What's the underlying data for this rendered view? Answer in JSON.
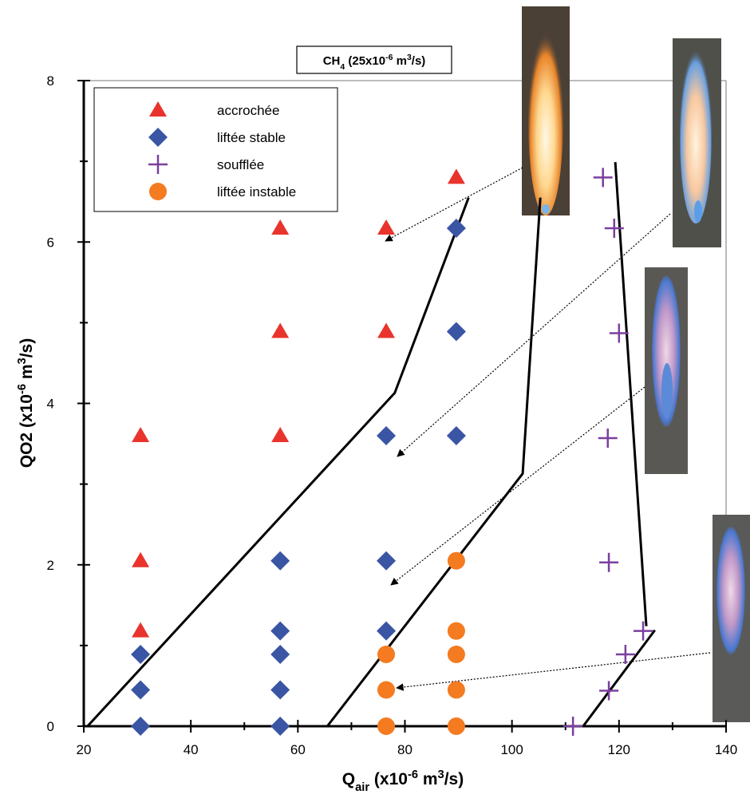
{
  "chart_data": {
    "type": "scatter",
    "title": [
      "CH",
      "4",
      " (25x10",
      "-6",
      " m",
      "3",
      "/s)"
    ],
    "x_label": [
      "Q",
      "air",
      " (x10",
      "-6",
      " m",
      "3",
      "/s)"
    ],
    "y_label": [
      "QO2 (x10",
      "-6",
      " m",
      "3",
      "/s)"
    ],
    "xlim": [
      20,
      140
    ],
    "ylim": [
      0,
      8
    ],
    "xticks": [
      20,
      40,
      60,
      80,
      100,
      120,
      140
    ],
    "yticks": [
      0,
      2,
      4,
      6,
      8
    ],
    "legend": "top-left",
    "series": [
      {
        "name": "accrochée",
        "color": "#e8342c",
        "marker": "triangle",
        "x": [
          30.6,
          30.6,
          30.6,
          56.7,
          56.7,
          56.7,
          76.5,
          76.5,
          89.6
        ],
        "values": [
          3.6,
          2.05,
          1.18,
          6.17,
          4.89,
          3.6,
          6.17,
          4.89,
          6.8
        ]
      },
      {
        "name": "liftée stable",
        "color": "#3a55a4",
        "marker": "diamond",
        "x": [
          30.6,
          30.6,
          30.6,
          56.7,
          56.7,
          56.7,
          56.7,
          56.7,
          76.5,
          76.5,
          76.5,
          89.6,
          89.6,
          89.6
        ],
        "values": [
          0.89,
          0.45,
          0,
          2.05,
          1.18,
          0.89,
          0.45,
          0,
          3.6,
          2.05,
          1.18,
          6.17,
          4.89,
          3.6
        ]
      },
      {
        "name": "soufflée",
        "color": "#7b3f9e",
        "marker": "plus",
        "x": [
          117.0,
          119.1,
          120.0,
          117.9,
          118.1,
          124.5,
          121.2,
          118.1,
          111.4
        ],
        "values": [
          6.8,
          6.17,
          4.87,
          3.57,
          2.03,
          1.18,
          0.89,
          0.44,
          0
        ]
      },
      {
        "name": "liftée instable",
        "color": "#f47b20",
        "marker": "circle",
        "x": [
          76.5,
          76.5,
          76.5,
          89.6,
          89.6,
          89.6,
          89.6,
          89.6
        ],
        "values": [
          0.89,
          0.45,
          0,
          2.05,
          1.18,
          0.89,
          0.45,
          0
        ]
      }
    ],
    "boundaries": [
      {
        "color": "#000000",
        "x": [
          20.7,
          78.1,
          91.9
        ],
        "values": [
          0,
          4.13,
          6.55
        ]
      },
      {
        "color": "#000000",
        "x": [
          65.5,
          102.0,
          105.3
        ],
        "values": [
          0,
          3.13,
          6.55
        ]
      },
      {
        "color": "#000000",
        "x": [
          119.3,
          125.1
        ],
        "values": [
          6.99,
          1.24
        ]
      },
      {
        "color": "#000000",
        "x": [
          113.3,
          126.7
        ],
        "values": [
          0,
          1.19
        ]
      }
    ]
  }
}
